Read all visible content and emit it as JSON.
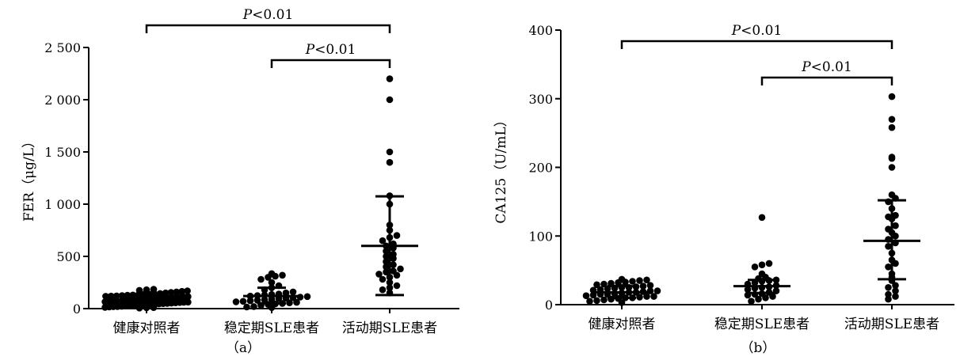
{
  "chart_data": [
    {
      "type": "scatter",
      "panel_label": "（a）",
      "ylabel": "FER（μg/L）",
      "ylim": [
        0,
        2500
      ],
      "yticks": [
        0,
        500,
        1000,
        1500,
        2000,
        2500
      ],
      "ytick_labels": [
        "0",
        "500",
        "1 000",
        "1 500",
        "2 000",
        "2 500"
      ],
      "categories": [
        "健康对照者",
        "稳定期SLE患者",
        "活动期SLE患者"
      ],
      "groups": [
        {
          "name": "健康对照者",
          "mean": 75,
          "sd_low": 30,
          "sd_high": 125,
          "values": [
            5,
            8,
            10,
            12,
            15,
            18,
            20,
            22,
            25,
            28,
            30,
            32,
            35,
            38,
            40,
            42,
            45,
            48,
            50,
            52,
            55,
            58,
            60,
            62,
            65,
            68,
            70,
            72,
            75,
            78,
            80,
            82,
            85,
            88,
            90,
            92,
            95,
            98,
            100,
            102,
            105,
            108,
            110,
            112,
            115,
            118,
            120,
            122,
            125,
            128,
            130,
            132,
            135,
            138,
            140,
            145,
            150,
            155,
            160,
            165,
            170,
            175,
            180,
            185
          ]
        },
        {
          "name": "稳定期SLE患者",
          "mean": 120,
          "sd_low": 50,
          "sd_high": 200,
          "values": [
            10,
            15,
            20,
            30,
            40,
            45,
            50,
            55,
            60,
            65,
            70,
            75,
            80,
            85,
            90,
            95,
            100,
            105,
            110,
            115,
            120,
            125,
            130,
            135,
            140,
            150,
            160,
            180,
            200,
            220,
            250,
            280,
            300,
            310,
            320,
            335
          ]
        },
        {
          "name": "活动期SLE患者",
          "mean": 600,
          "sd_low": 130,
          "sd_high": 1075,
          "values": [
            150,
            180,
            200,
            220,
            250,
            280,
            300,
            320,
            330,
            350,
            360,
            380,
            400,
            420,
            450,
            480,
            500,
            520,
            550,
            580,
            600,
            620,
            650,
            680,
            700,
            750,
            800,
            1000,
            1080,
            1400,
            1500,
            2000,
            2200
          ]
        }
      ],
      "comparisons": [
        {
          "from": "健康对照者",
          "to": "活动期SLE患者",
          "label": "P<0.01"
        },
        {
          "from": "稳定期SLE患者",
          "to": "活动期SLE患者",
          "label": "P<0.01"
        }
      ]
    },
    {
      "type": "scatter",
      "panel_label": "（b）",
      "ylabel": "CA125（U/mL）",
      "ylim": [
        0,
        400
      ],
      "yticks": [
        0,
        100,
        200,
        300,
        400
      ],
      "ytick_labels": [
        "0",
        "100",
        "200",
        "300",
        "400"
      ],
      "categories": [
        "健康对照者",
        "稳定期SLE患者",
        "活动期SLE患者"
      ],
      "groups": [
        {
          "name": "健康对照者",
          "mean": 18,
          "sd_low": 10,
          "sd_high": 27,
          "values": [
            3,
            5,
            6,
            7,
            8,
            9,
            10,
            10,
            11,
            12,
            12,
            13,
            14,
            15,
            15,
            16,
            17,
            18,
            18,
            19,
            20,
            20,
            21,
            22,
            23,
            24,
            25,
            25,
            26,
            27,
            28,
            29,
            30,
            31,
            32,
            33,
            34,
            35,
            36,
            37
          ]
        },
        {
          "name": "稳定期SLE患者",
          "mean": 27,
          "sd_low": 17,
          "sd_high": 36,
          "values": [
            5,
            8,
            10,
            12,
            14,
            15,
            16,
            18,
            20,
            22,
            24,
            25,
            26,
            28,
            30,
            32,
            34,
            35,
            36,
            38,
            40,
            45,
            55,
            58,
            60,
            127
          ]
        },
        {
          "name": "活动期SLE患者",
          "mean": 93,
          "sd_low": 37,
          "sd_high": 152,
          "values": [
            8,
            12,
            15,
            20,
            25,
            28,
            35,
            40,
            45,
            55,
            60,
            65,
            75,
            85,
            90,
            95,
            100,
            105,
            110,
            115,
            125,
            128,
            130,
            140,
            150,
            155,
            160,
            200,
            213,
            215,
            258,
            270,
            303
          ]
        }
      ],
      "comparisons": [
        {
          "from": "健康对照者",
          "to": "活动期SLE患者",
          "label": "P<0.01"
        },
        {
          "from": "稳定期SLE患者",
          "to": "活动期SLE患者",
          "label": "P<0.01"
        }
      ]
    }
  ]
}
